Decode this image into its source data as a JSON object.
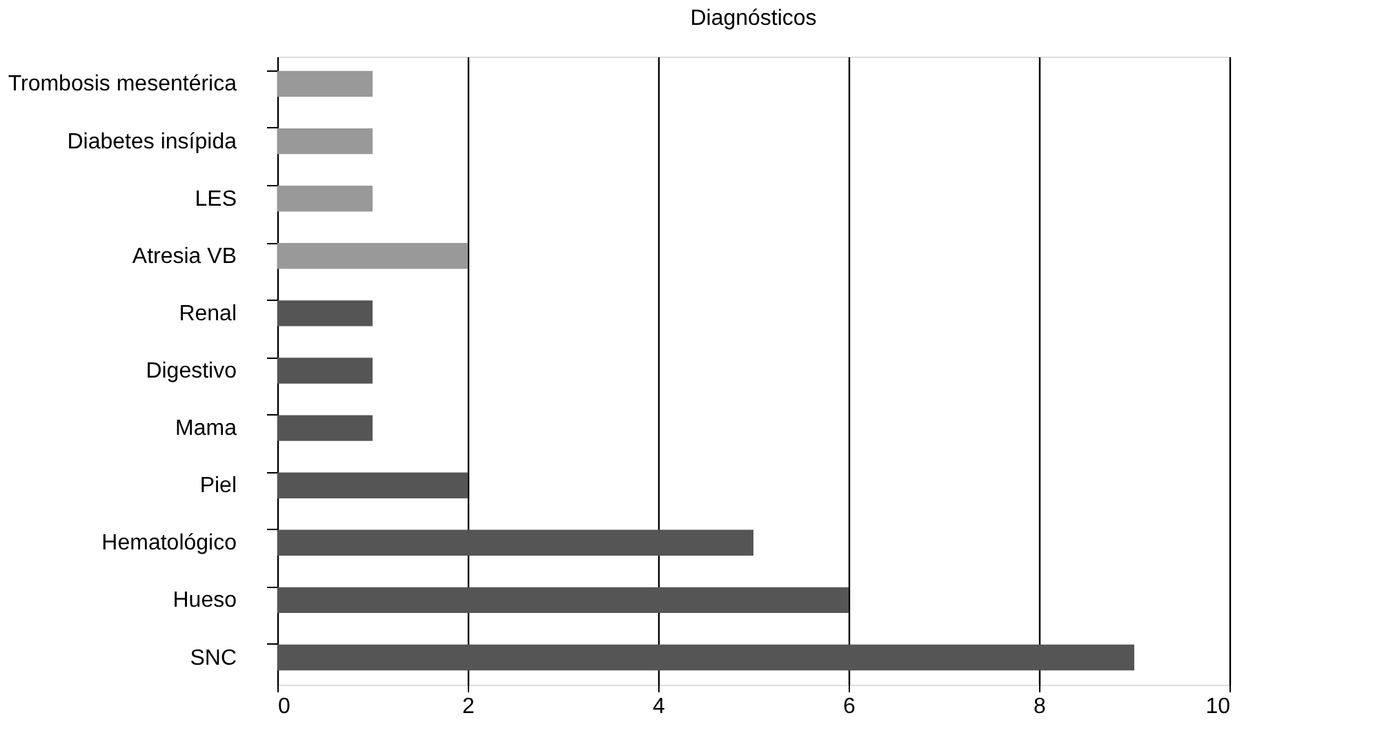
{
  "chart_data": {
    "type": "bar",
    "orientation": "horizontal",
    "title": "Diagnósticos",
    "categories": [
      "Trombosis mesentérica",
      "Diabetes insípida",
      "LES",
      "Atresia VB",
      "Renal",
      "Digestivo",
      "Mama",
      "Piel",
      "Hematológico",
      "Hueso",
      "SNC"
    ],
    "values": [
      1,
      1,
      1,
      2,
      1,
      1,
      1,
      2,
      5,
      6,
      9
    ],
    "colors": [
      "#999999",
      "#999999",
      "#999999",
      "#999999",
      "#555555",
      "#555555",
      "#555555",
      "#555555",
      "#555555",
      "#555555",
      "#555555"
    ],
    "xlim": [
      0,
      10
    ],
    "xticks": [
      0,
      2,
      4,
      6,
      8,
      10
    ],
    "grid": "x"
  }
}
